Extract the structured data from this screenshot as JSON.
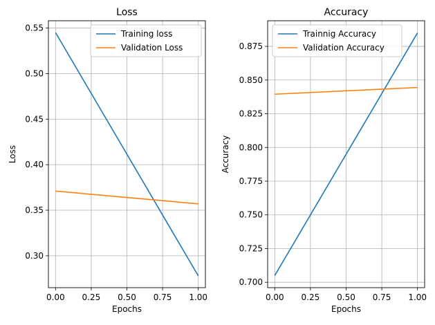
{
  "chart_data": [
    {
      "type": "line",
      "title": "Loss",
      "xlabel": "Epochs",
      "ylabel": "Loss",
      "xlim": [
        -0.05,
        1.05
      ],
      "ylim": [
        0.265,
        0.558
      ],
      "xticks": [
        0.0,
        0.25,
        0.5,
        0.75,
        1.0
      ],
      "xtick_labels": [
        "0.00",
        "0.25",
        "0.50",
        "0.75",
        "1.00"
      ],
      "yticks": [
        0.3,
        0.35,
        0.4,
        0.45,
        0.5,
        0.55
      ],
      "ytick_labels": [
        "0.30",
        "0.35",
        "0.40",
        "0.45",
        "0.50",
        "0.55"
      ],
      "grid": true,
      "legend_position": "top-right",
      "series": [
        {
          "name": "Training loss",
          "color": "#1f77b4",
          "x": [
            0,
            1
          ],
          "values": [
            0.545,
            0.278
          ]
        },
        {
          "name": "Validation Loss",
          "color": "#ff7f0e",
          "x": [
            0,
            1
          ],
          "values": [
            0.371,
            0.357
          ]
        }
      ]
    },
    {
      "type": "line",
      "title": "Accuracy",
      "xlabel": "Epochs",
      "ylabel": "Accuracy",
      "xlim": [
        -0.05,
        1.05
      ],
      "ylim": [
        0.696,
        0.894
      ],
      "xticks": [
        0.0,
        0.25,
        0.5,
        0.75,
        1.0
      ],
      "xtick_labels": [
        "0.00",
        "0.25",
        "0.50",
        "0.75",
        "1.00"
      ],
      "yticks": [
        0.7,
        0.725,
        0.75,
        0.775,
        0.8,
        0.825,
        0.85,
        0.875
      ],
      "ytick_labels": [
        "0.700",
        "0.725",
        "0.750",
        "0.775",
        "0.800",
        "0.825",
        "0.850",
        "0.875"
      ],
      "grid": true,
      "legend_position": "top-left",
      "series": [
        {
          "name": "Trainnig Accuracy",
          "color": "#1f77b4",
          "x": [
            0,
            1
          ],
          "values": [
            0.705,
            0.885
          ]
        },
        {
          "name": "Validation Accuracy",
          "color": "#ff7f0e",
          "x": [
            0,
            1
          ],
          "values": [
            0.8395,
            0.8445
          ]
        }
      ]
    }
  ]
}
